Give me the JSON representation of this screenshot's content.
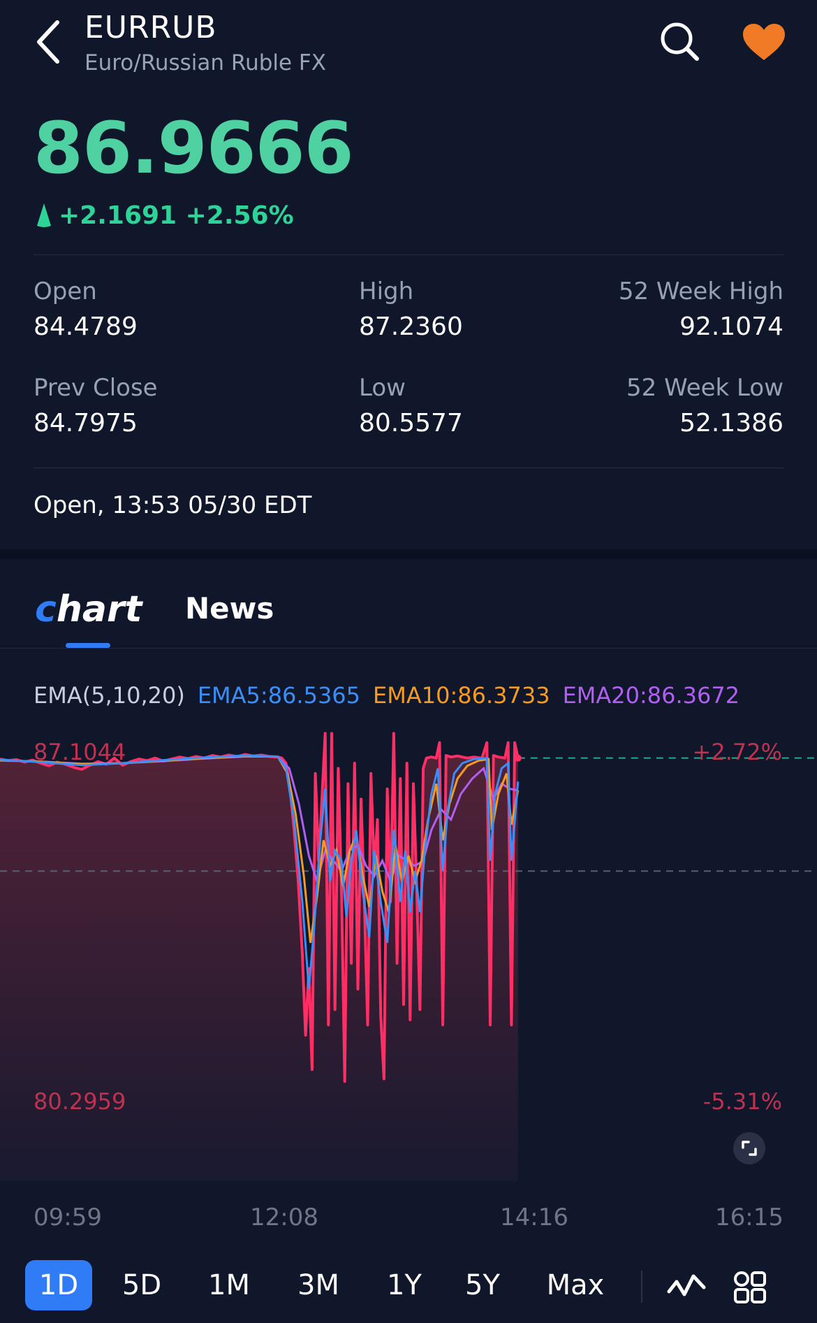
{
  "header": {
    "symbol": "EURRUB",
    "name": "Euro/Russian Ruble FX",
    "icons": {
      "back": "chevron-left-icon",
      "search": "search-icon",
      "favorite": "heart-icon"
    },
    "favorite_color": "#f07a25"
  },
  "quote": {
    "price": "86.9666",
    "change": "+2.1691 +2.56%",
    "price_color": "#4fd1a1",
    "change_color": "#2ed397"
  },
  "stats": {
    "open_label": "Open",
    "open_value": "84.4789",
    "high_label": "High",
    "high_value": "87.2360",
    "w52high_label": "52 Week High",
    "w52high_value": "92.1074",
    "prevclose_label": "Prev Close",
    "prevclose_value": "84.7975",
    "low_label": "Low",
    "low_value": "80.5577",
    "w52low_label": "52 Week Low",
    "w52low_value": "52.1386"
  },
  "status": "Open, 13:53 05/30 EDT",
  "tabs": {
    "chart": "hart",
    "news": "News",
    "active": "Chart"
  },
  "indicators": {
    "label": "EMA(5,10,20)",
    "ema5": "EMA5:86.5365",
    "ema10": "EMA10:86.3733",
    "ema20": "EMA20:86.3672",
    "colors": {
      "price": "#ff2f66",
      "ema5": "#3a8ef6",
      "ema10": "#f59a23",
      "ema20": "#b15ff0"
    }
  },
  "chart_data": {
    "type": "line",
    "y_top_label": "87.1044",
    "y_bottom_label": "80.2959",
    "pct_top_label": "+2.72%",
    "pct_bottom_label": "-5.31%",
    "ylim": [
      80.2959,
      87.1044
    ],
    "reference_line": 84.7975,
    "x_ticks": [
      "09:59",
      "12:08",
      "14:16",
      "16:15"
    ],
    "price_series": [
      [
        0.0,
        86.98
      ],
      [
        0.01,
        86.95
      ],
      [
        0.02,
        86.97
      ],
      [
        0.03,
        86.92
      ],
      [
        0.04,
        86.96
      ],
      [
        0.05,
        86.9
      ],
      [
        0.06,
        86.85
      ],
      [
        0.07,
        86.92
      ],
      [
        0.08,
        86.88
      ],
      [
        0.09,
        86.82
      ],
      [
        0.1,
        86.78
      ],
      [
        0.11,
        86.86
      ],
      [
        0.12,
        86.93
      ],
      [
        0.13,
        86.88
      ],
      [
        0.14,
        87.0
      ],
      [
        0.15,
        86.86
      ],
      [
        0.16,
        86.93
      ],
      [
        0.17,
        86.98
      ],
      [
        0.18,
        86.95
      ],
      [
        0.19,
        87.0
      ],
      [
        0.2,
        86.94
      ],
      [
        0.21,
        86.98
      ],
      [
        0.22,
        87.02
      ],
      [
        0.23,
        86.99
      ],
      [
        0.24,
        87.03
      ],
      [
        0.25,
        87.0
      ],
      [
        0.26,
        87.05
      ],
      [
        0.27,
        87.02
      ],
      [
        0.28,
        87.06
      ],
      [
        0.29,
        87.03
      ],
      [
        0.3,
        87.07
      ],
      [
        0.31,
        87.04
      ],
      [
        0.32,
        87.06
      ],
      [
        0.33,
        87.03
      ],
      [
        0.34,
        87.02
      ],
      [
        0.345,
        87.0
      ],
      [
        0.35,
        86.9
      ],
      [
        0.355,
        86.4
      ],
      [
        0.36,
        85.6
      ],
      [
        0.365,
        84.6
      ],
      [
        0.37,
        83.2
      ],
      [
        0.374,
        81.6
      ],
      [
        0.378,
        82.9
      ],
      [
        0.382,
        80.93
      ],
      [
        0.386,
        86.7
      ],
      [
        0.39,
        85.0
      ],
      [
        0.394,
        86.2
      ],
      [
        0.398,
        87.48
      ],
      [
        0.402,
        81.8
      ],
      [
        0.406,
        87.48
      ],
      [
        0.41,
        82.1
      ],
      [
        0.414,
        86.8
      ],
      [
        0.418,
        84.4
      ],
      [
        0.422,
        80.7
      ],
      [
        0.426,
        86.5
      ],
      [
        0.43,
        83.0
      ],
      [
        0.434,
        86.9
      ],
      [
        0.438,
        82.5
      ],
      [
        0.442,
        86.2
      ],
      [
        0.446,
        84.2
      ],
      [
        0.45,
        81.8
      ],
      [
        0.454,
        86.7
      ],
      [
        0.458,
        84.8
      ],
      [
        0.462,
        85.8
      ],
      [
        0.466,
        82.0
      ],
      [
        0.47,
        80.75
      ],
      [
        0.474,
        86.4
      ],
      [
        0.478,
        84.2
      ],
      [
        0.482,
        87.48
      ],
      [
        0.486,
        83.0
      ],
      [
        0.49,
        86.6
      ],
      [
        0.494,
        82.2
      ],
      [
        0.498,
        86.9
      ],
      [
        0.502,
        81.9
      ],
      [
        0.506,
        86.5
      ],
      [
        0.51,
        84.5
      ],
      [
        0.514,
        82.1
      ],
      [
        0.518,
        86.8
      ],
      [
        0.522,
        87.0
      ],
      [
        0.528,
        87.02
      ],
      [
        0.534,
        87.0
      ],
      [
        0.538,
        87.3
      ],
      [
        0.542,
        81.8
      ],
      [
        0.546,
        87.05
      ],
      [
        0.552,
        87.02
      ],
      [
        0.56,
        87.04
      ],
      [
        0.566,
        87.02
      ],
      [
        0.572,
        87.0
      ],
      [
        0.58,
        87.02
      ],
      [
        0.59,
        87.0
      ],
      [
        0.596,
        87.3
      ],
      [
        0.6,
        81.8
      ],
      [
        0.604,
        87.05
      ],
      [
        0.61,
        87.02
      ],
      [
        0.618,
        87.0
      ],
      [
        0.622,
        87.3
      ],
      [
        0.626,
        81.8
      ],
      [
        0.63,
        87.3
      ],
      [
        0.634,
        87.0
      ]
    ],
    "ema5_series": [
      [
        0.0,
        86.97
      ],
      [
        0.05,
        86.92
      ],
      [
        0.1,
        86.86
      ],
      [
        0.15,
        86.9
      ],
      [
        0.2,
        86.96
      ],
      [
        0.25,
        87.01
      ],
      [
        0.3,
        87.05
      ],
      [
        0.34,
        87.03
      ],
      [
        0.35,
        86.8
      ],
      [
        0.36,
        85.8
      ],
      [
        0.37,
        84.2
      ],
      [
        0.378,
        82.5
      ],
      [
        0.384,
        83.6
      ],
      [
        0.392,
        85.4
      ],
      [
        0.398,
        86.4
      ],
      [
        0.404,
        84.6
      ],
      [
        0.41,
        85.2
      ],
      [
        0.418,
        85.0
      ],
      [
        0.424,
        83.9
      ],
      [
        0.43,
        85.0
      ],
      [
        0.436,
        85.6
      ],
      [
        0.444,
        84.4
      ],
      [
        0.452,
        83.5
      ],
      [
        0.458,
        85.2
      ],
      [
        0.466,
        84.2
      ],
      [
        0.474,
        83.4
      ],
      [
        0.482,
        85.6
      ],
      [
        0.49,
        84.2
      ],
      [
        0.496,
        85.2
      ],
      [
        0.502,
        84.0
      ],
      [
        0.508,
        84.8
      ],
      [
        0.514,
        84.0
      ],
      [
        0.52,
        85.2
      ],
      [
        0.528,
        86.3
      ],
      [
        0.536,
        86.8
      ],
      [
        0.542,
        84.8
      ],
      [
        0.548,
        86.0
      ],
      [
        0.556,
        86.7
      ],
      [
        0.566,
        86.9
      ],
      [
        0.58,
        86.98
      ],
      [
        0.596,
        87.0
      ],
      [
        0.6,
        85.0
      ],
      [
        0.606,
        86.3
      ],
      [
        0.614,
        86.8
      ],
      [
        0.622,
        86.9
      ],
      [
        0.626,
        85.0
      ],
      [
        0.634,
        86.54
      ]
    ],
    "ema10_series": [
      [
        0.0,
        86.96
      ],
      [
        0.05,
        86.93
      ],
      [
        0.1,
        86.88
      ],
      [
        0.15,
        86.9
      ],
      [
        0.2,
        86.95
      ],
      [
        0.25,
        87.0
      ],
      [
        0.3,
        87.04
      ],
      [
        0.34,
        87.03
      ],
      [
        0.352,
        86.7
      ],
      [
        0.362,
        85.9
      ],
      [
        0.372,
        84.7
      ],
      [
        0.38,
        83.4
      ],
      [
        0.388,
        84.3
      ],
      [
        0.396,
        85.4
      ],
      [
        0.404,
        84.9
      ],
      [
        0.412,
        85.2
      ],
      [
        0.42,
        84.5
      ],
      [
        0.428,
        85.2
      ],
      [
        0.436,
        85.5
      ],
      [
        0.444,
        84.7
      ],
      [
        0.452,
        84.1
      ],
      [
        0.46,
        85.1
      ],
      [
        0.468,
        84.4
      ],
      [
        0.476,
        84.0
      ],
      [
        0.484,
        85.3
      ],
      [
        0.492,
        84.6
      ],
      [
        0.5,
        85.1
      ],
      [
        0.508,
        84.6
      ],
      [
        0.516,
        85.0
      ],
      [
        0.524,
        85.8
      ],
      [
        0.534,
        86.5
      ],
      [
        0.542,
        85.4
      ],
      [
        0.55,
        86.1
      ],
      [
        0.56,
        86.6
      ],
      [
        0.572,
        86.85
      ],
      [
        0.586,
        86.95
      ],
      [
        0.598,
        86.98
      ],
      [
        0.602,
        85.6
      ],
      [
        0.61,
        86.3
      ],
      [
        0.62,
        86.7
      ],
      [
        0.626,
        85.7
      ],
      [
        0.634,
        86.37
      ]
    ],
    "ema20_series": [
      [
        0.0,
        86.95
      ],
      [
        0.05,
        86.93
      ],
      [
        0.1,
        86.89
      ],
      [
        0.15,
        86.9
      ],
      [
        0.2,
        86.94
      ],
      [
        0.25,
        86.99
      ],
      [
        0.3,
        87.03
      ],
      [
        0.34,
        87.03
      ],
      [
        0.354,
        86.8
      ],
      [
        0.366,
        86.1
      ],
      [
        0.378,
        85.1
      ],
      [
        0.388,
        84.6
      ],
      [
        0.398,
        85.2
      ],
      [
        0.408,
        85.0
      ],
      [
        0.418,
        84.8
      ],
      [
        0.428,
        85.2
      ],
      [
        0.438,
        85.3
      ],
      [
        0.448,
        84.9
      ],
      [
        0.458,
        84.7
      ],
      [
        0.468,
        85.0
      ],
      [
        0.478,
        84.6
      ],
      [
        0.488,
        85.1
      ],
      [
        0.498,
        85.0
      ],
      [
        0.508,
        84.9
      ],
      [
        0.518,
        85.0
      ],
      [
        0.528,
        85.6
      ],
      [
        0.54,
        86.0
      ],
      [
        0.552,
        85.8
      ],
      [
        0.564,
        86.3
      ],
      [
        0.578,
        86.6
      ],
      [
        0.592,
        86.8
      ],
      [
        0.604,
        86.2
      ],
      [
        0.614,
        86.5
      ],
      [
        0.624,
        86.4
      ],
      [
        0.634,
        86.37
      ]
    ]
  },
  "ranges": [
    "1D",
    "5D",
    "1M",
    "3M",
    "1Y",
    "5Y",
    "Max"
  ],
  "active_range": "1D",
  "tools": {
    "line": "line-chart-icon",
    "grid": "grid-icon",
    "expand": "expand-icon"
  },
  "accent": "#2f7cf6"
}
